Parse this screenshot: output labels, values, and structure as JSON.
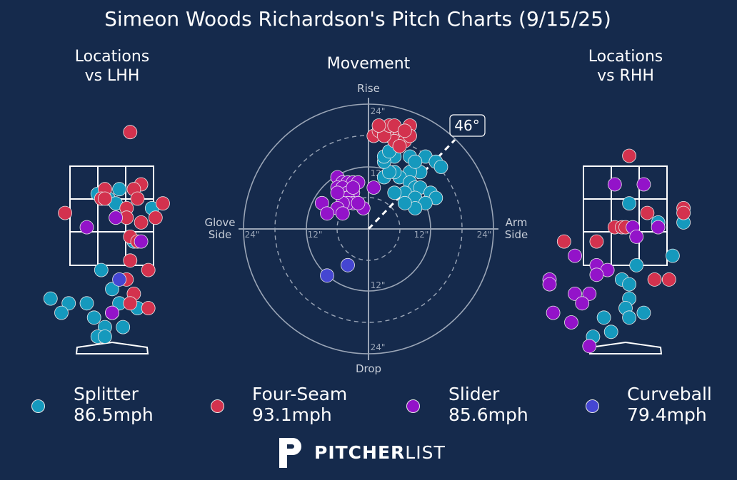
{
  "title": "Simeon Woods Richardson's Pitch Charts (9/15/25)",
  "panels": {
    "lhh_title": [
      "Locations",
      "vs LHH"
    ],
    "movement_title": "Movement",
    "rhh_title": [
      "Locations",
      "vs RHH"
    ]
  },
  "movement_labels": {
    "top": "Rise",
    "bottom": "Drop",
    "left": [
      "Glove",
      "Side"
    ],
    "right": [
      "Arm",
      "Side"
    ],
    "ring_labels": [
      "12\"",
      "24\""
    ],
    "arm_angle": "46°"
  },
  "colors": {
    "background": "#152a4c",
    "Splitter": "#1599bd",
    "Four-Seam": "#d3324e",
    "Slider": "#9313c9",
    "Curveball": "#4546d2"
  },
  "legend": [
    {
      "pitch": "Splitter",
      "speed": "86.5mph"
    },
    {
      "pitch": "Four-Seam",
      "speed": "93.1mph"
    },
    {
      "pitch": "Slider",
      "speed": "85.6mph"
    },
    {
      "pitch": "Curveball",
      "speed": "79.4mph"
    }
  ],
  "logo": {
    "bold": "PITCHER",
    "light": "LIST"
  },
  "chart_data": [
    {
      "type": "scatter",
      "title": "Locations vs LHH",
      "xlim": [
        -2.3,
        2.3
      ],
      "ylim": [
        0,
        5.3
      ],
      "series": [
        {
          "name": "Splitter",
          "points": [
            [
              -0.4,
              3.6
            ],
            [
              0.2,
              3.7
            ],
            [
              -0.1,
              3.5
            ],
            [
              0.1,
              3.4
            ],
            [
              1.1,
              3.3
            ],
            [
              0.6,
              2.6
            ],
            [
              -0.3,
              2.0
            ],
            [
              0.0,
              1.6
            ],
            [
              0.2,
              1.3
            ],
            [
              0.7,
              1.2
            ],
            [
              -1.7,
              1.4
            ],
            [
              -1.2,
              1.3
            ],
            [
              -0.7,
              1.3
            ],
            [
              -1.4,
              1.1
            ],
            [
              -0.5,
              1.0
            ],
            [
              -0.2,
              0.8
            ],
            [
              0.3,
              0.8
            ],
            [
              -0.4,
              0.6
            ],
            [
              -0.2,
              0.6
            ],
            [
              0.0,
              1.1
            ]
          ]
        },
        {
          "name": "Four-Seam",
          "points": [
            [
              0.5,
              4.9
            ],
            [
              0.8,
              3.8
            ],
            [
              0.6,
              3.7
            ],
            [
              -0.2,
              3.7
            ],
            [
              -0.3,
              3.5
            ],
            [
              0.7,
              3.5
            ],
            [
              1.4,
              3.4
            ],
            [
              -1.3,
              3.2
            ],
            [
              0.4,
              3.3
            ],
            [
              0.4,
              3.1
            ],
            [
              0.8,
              3.0
            ],
            [
              1.2,
              3.1
            ],
            [
              0.5,
              2.7
            ],
            [
              0.7,
              2.6
            ],
            [
              0.5,
              2.2
            ],
            [
              1.0,
              2.0
            ],
            [
              0.4,
              1.8
            ],
            [
              0.6,
              1.5
            ],
            [
              0.5,
              1.3
            ],
            [
              1.0,
              1.2
            ],
            [
              -0.2,
              3.5
            ]
          ]
        },
        {
          "name": "Slider",
          "points": [
            [
              -0.7,
              2.9
            ],
            [
              0.1,
              3.1
            ],
            [
              0.8,
              2.6
            ],
            [
              0.0,
              1.1
            ]
          ]
        },
        {
          "name": "Curveball",
          "points": [
            [
              0.2,
              1.8
            ]
          ]
        }
      ]
    },
    {
      "type": "scatter",
      "title": "Movement",
      "xlabel": "Glove Side / Arm Side",
      "ylabel": "Drop / Rise",
      "xlim": [
        -26,
        26
      ],
      "ylim": [
        -26,
        26
      ],
      "series": [
        {
          "name": "Splitter",
          "points": [
            [
              8,
              14
            ],
            [
              11,
              14
            ],
            [
              13,
              13
            ],
            [
              14,
              12
            ],
            [
              10,
              11
            ],
            [
              8,
              11
            ],
            [
              6,
              10
            ],
            [
              5,
              11
            ],
            [
              3,
              10
            ],
            [
              4,
              11
            ],
            [
              5,
              14
            ],
            [
              3,
              13
            ],
            [
              8,
              9
            ],
            [
              9,
              8
            ],
            [
              10,
              8
            ],
            [
              12,
              7
            ],
            [
              7,
              7
            ],
            [
              9,
              6
            ],
            [
              13,
              6
            ],
            [
              11,
              5
            ],
            [
              5,
              7
            ],
            [
              9,
              4
            ],
            [
              7,
              5
            ],
            [
              3,
              14
            ],
            [
              4,
              15
            ],
            [
              9,
              13
            ]
          ]
        },
        {
          "name": "Four-Seam",
          "points": [
            [
              1,
              18
            ],
            [
              2,
              19
            ],
            [
              3,
              19
            ],
            [
              4,
              18
            ],
            [
              5,
              19
            ],
            [
              6,
              18
            ],
            [
              7,
              18
            ],
            [
              8,
              20
            ],
            [
              5,
              17
            ],
            [
              3,
              18
            ],
            [
              4,
              20
            ],
            [
              7,
              17
            ],
            [
              6,
              16
            ],
            [
              2,
              20
            ],
            [
              5,
              20
            ],
            [
              8,
              18
            ],
            [
              7,
              19
            ]
          ]
        },
        {
          "name": "Slider",
          "points": [
            [
              -6,
              10
            ],
            [
              -5,
              9
            ],
            [
              -4,
              9
            ],
            [
              -3,
              9
            ],
            [
              -2,
              9
            ],
            [
              -6,
              8
            ],
            [
              -5,
              8
            ],
            [
              -4,
              7
            ],
            [
              -3,
              7
            ],
            [
              -5,
              6
            ],
            [
              -4,
              6
            ],
            [
              -3,
              5
            ],
            [
              -4,
              5
            ],
            [
              -5,
              5
            ],
            [
              -1,
              4
            ],
            [
              -6,
              4
            ],
            [
              -2,
              5
            ],
            [
              -5,
              3
            ],
            [
              -9,
              5
            ],
            [
              -8,
              3
            ],
            [
              1,
              8
            ],
            [
              -3,
              8
            ],
            [
              -6,
              7
            ]
          ]
        },
        {
          "name": "Curveball",
          "points": [
            [
              -8,
              -9
            ],
            [
              -4,
              -7
            ]
          ]
        }
      ],
      "arm_angle_deg": 46
    },
    {
      "type": "scatter",
      "title": "Locations vs RHH",
      "xlim": [
        -2.3,
        2.3
      ],
      "ylim": [
        0,
        5.3
      ],
      "series": [
        {
          "name": "Splitter",
          "points": [
            [
              0.1,
              3.4
            ],
            [
              0.9,
              3.0
            ],
            [
              1.6,
              3.0
            ],
            [
              1.3,
              2.3
            ],
            [
              0.3,
              2.1
            ],
            [
              -0.1,
              1.8
            ],
            [
              0.1,
              1.7
            ],
            [
              0.1,
              1.4
            ],
            [
              0.0,
              1.2
            ],
            [
              -0.6,
              1.0
            ],
            [
              0.1,
              1.0
            ],
            [
              0.5,
              1.1
            ],
            [
              -0.4,
              0.7
            ],
            [
              -0.9,
              0.6
            ]
          ]
        },
        {
          "name": "Four-Seam",
          "points": [
            [
              0.1,
              4.4
            ],
            [
              1.6,
              3.3
            ],
            [
              1.6,
              3.2
            ],
            [
              0.6,
              3.2
            ],
            [
              -0.3,
              2.9
            ],
            [
              -0.1,
              2.9
            ],
            [
              0.0,
              2.9
            ],
            [
              -1.7,
              2.6
            ],
            [
              -0.8,
              2.6
            ],
            [
              0.8,
              1.8
            ],
            [
              1.2,
              1.8
            ]
          ]
        },
        {
          "name": "Slider",
          "points": [
            [
              -0.3,
              3.8
            ],
            [
              0.5,
              3.8
            ],
            [
              0.2,
              2.9
            ],
            [
              0.9,
              2.9
            ],
            [
              0.3,
              2.7
            ],
            [
              -1.4,
              2.3
            ],
            [
              -0.8,
              2.1
            ],
            [
              -0.5,
              2.0
            ],
            [
              -0.8,
              1.9
            ],
            [
              -2.1,
              1.8
            ],
            [
              -2.1,
              1.7
            ],
            [
              -1.4,
              1.5
            ],
            [
              -1.0,
              1.5
            ],
            [
              -1.2,
              1.3
            ],
            [
              -2.0,
              1.1
            ],
            [
              -1.5,
              0.9
            ],
            [
              -1.0,
              0.4
            ]
          ]
        },
        {
          "name": "Curveball",
          "points": []
        }
      ]
    }
  ]
}
